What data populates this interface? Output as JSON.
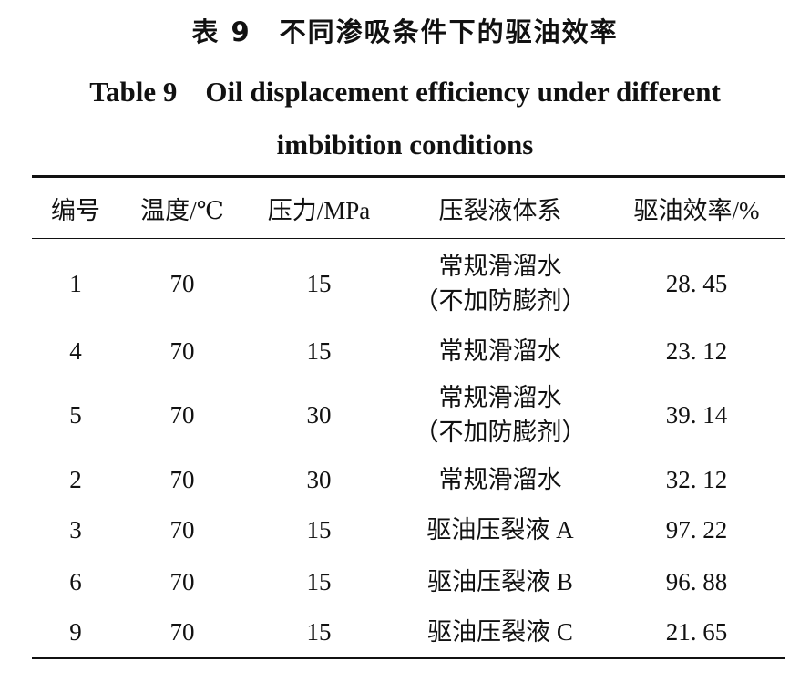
{
  "title_cn": "表 9　不同渗吸条件下的驱油效率",
  "title_en": "Table 9　Oil displacement efficiency under different imbibition conditions",
  "table": {
    "header": [
      "编号",
      "温度/℃",
      "压力/MPa",
      "压裂液体系",
      "驱油效率/%"
    ],
    "rows": [
      [
        "1",
        "70",
        "15",
        [
          "常规滑溜水",
          "（不加防膨剂）"
        ],
        "28. 45"
      ],
      [
        "4",
        "70",
        "15",
        [
          "常规滑溜水"
        ],
        "23. 12"
      ],
      [
        "5",
        "70",
        "30",
        [
          "常规滑溜水",
          "（不加防膨剂）"
        ],
        "39. 14"
      ],
      [
        "2",
        "70",
        "30",
        [
          "常规滑溜水"
        ],
        "32. 12"
      ],
      [
        "3",
        "70",
        "15",
        [
          "驱油压裂液 A"
        ],
        "97. 22"
      ],
      [
        "6",
        "70",
        "15",
        [
          "驱油压裂液 B"
        ],
        "96. 88"
      ],
      [
        "9",
        "70",
        "15",
        [
          "驱油压裂液 C"
        ],
        "21. 65"
      ]
    ]
  }
}
